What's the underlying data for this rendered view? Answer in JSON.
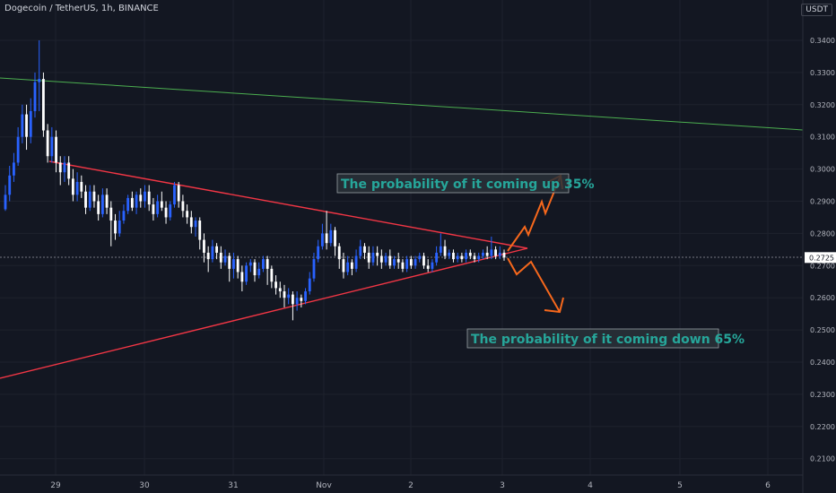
{
  "header": {
    "title": "Dogecoin / TetherUS, 1h, BINANCE",
    "currency": "USDT"
  },
  "colors": {
    "background": "#131722",
    "grid": "#1e222d",
    "axis_text": "#b2b5be",
    "up": "#2962ff",
    "down": "#ffffff",
    "triangle": "#f23645",
    "channel": "#4caf50",
    "arrow": "#f7681c",
    "annotation_text": "#26a69a",
    "price_badge": "#ffffff"
  },
  "chart_data": {
    "type": "candlestick",
    "y_ticks": [
      "0.3400",
      "0.3300",
      "0.3200",
      "0.3100",
      "0.3000",
      "0.2900",
      "0.2800",
      "0.2725",
      "0.2700",
      "0.2600",
      "0.2500",
      "0.2400",
      "0.2300",
      "0.2200",
      "0.2100"
    ],
    "x_ticks": [
      "29",
      "30",
      "31",
      "Nov",
      "2",
      "3",
      "4",
      "5",
      "6"
    ],
    "ylim": [
      0.2033,
      0.35
    ],
    "current_price": 0.2725,
    "annotations": [
      "The probability of it coming up 35%",
      "The probability of it coming down 65%"
    ],
    "candles": [
      [
        0.2875,
        0.292,
        0.287,
        0.295
      ],
      [
        0.292,
        0.298,
        0.29,
        0.301
      ],
      [
        0.298,
        0.302,
        0.296,
        0.305
      ],
      [
        0.302,
        0.31,
        0.301,
        0.313
      ],
      [
        0.31,
        0.317,
        0.308,
        0.32
      ],
      [
        0.317,
        0.31,
        0.306,
        0.32
      ],
      [
        0.31,
        0.318,
        0.308,
        0.322
      ],
      [
        0.318,
        0.327,
        0.316,
        0.33
      ],
      [
        0.327,
        0.328,
        0.318,
        0.34
      ],
      [
        0.328,
        0.312,
        0.31,
        0.33
      ],
      [
        0.312,
        0.304,
        0.302,
        0.314
      ],
      [
        0.304,
        0.31,
        0.302,
        0.313
      ],
      [
        0.31,
        0.302,
        0.299,
        0.312
      ],
      [
        0.302,
        0.299,
        0.295,
        0.304
      ],
      [
        0.299,
        0.302,
        0.296,
        0.304
      ],
      [
        0.302,
        0.297,
        0.295,
        0.304
      ],
      [
        0.297,
        0.292,
        0.29,
        0.3
      ],
      [
        0.292,
        0.296,
        0.29,
        0.299
      ],
      [
        0.296,
        0.293,
        0.291,
        0.298
      ],
      [
        0.293,
        0.288,
        0.286,
        0.295
      ],
      [
        0.288,
        0.293,
        0.287,
        0.295
      ],
      [
        0.293,
        0.29,
        0.288,
        0.295
      ],
      [
        0.29,
        0.286,
        0.284,
        0.292
      ],
      [
        0.286,
        0.292,
        0.285,
        0.294
      ],
      [
        0.292,
        0.288,
        0.286,
        0.294
      ],
      [
        0.288,
        0.284,
        0.276,
        0.29
      ],
      [
        0.284,
        0.28,
        0.278,
        0.286
      ],
      [
        0.28,
        0.284,
        0.279,
        0.287
      ],
      [
        0.284,
        0.287,
        0.283,
        0.289
      ],
      [
        0.287,
        0.291,
        0.286,
        0.292
      ],
      [
        0.291,
        0.288,
        0.287,
        0.293
      ],
      [
        0.288,
        0.292,
        0.286,
        0.293
      ],
      [
        0.292,
        0.29,
        0.288,
        0.294
      ],
      [
        0.29,
        0.293,
        0.288,
        0.295
      ],
      [
        0.293,
        0.289,
        0.287,
        0.295
      ],
      [
        0.289,
        0.286,
        0.284,
        0.291
      ],
      [
        0.286,
        0.29,
        0.285,
        0.292
      ],
      [
        0.29,
        0.288,
        0.287,
        0.293
      ],
      [
        0.288,
        0.285,
        0.283,
        0.29
      ],
      [
        0.285,
        0.289,
        0.284,
        0.29
      ],
      [
        0.289,
        0.295,
        0.288,
        0.296
      ],
      [
        0.295,
        0.29,
        0.288,
        0.296
      ],
      [
        0.29,
        0.287,
        0.285,
        0.292
      ],
      [
        0.287,
        0.285,
        0.283,
        0.289
      ],
      [
        0.285,
        0.282,
        0.28,
        0.287
      ],
      [
        0.282,
        0.284,
        0.279,
        0.285
      ],
      [
        0.284,
        0.278,
        0.275,
        0.285
      ],
      [
        0.278,
        0.274,
        0.271,
        0.28
      ],
      [
        0.274,
        0.272,
        0.268,
        0.276
      ],
      [
        0.272,
        0.276,
        0.271,
        0.278
      ],
      [
        0.276,
        0.274,
        0.272,
        0.277
      ],
      [
        0.274,
        0.271,
        0.269,
        0.276
      ],
      [
        0.271,
        0.273,
        0.27,
        0.275
      ],
      [
        0.273,
        0.269,
        0.265,
        0.274
      ],
      [
        0.269,
        0.272,
        0.266,
        0.274
      ],
      [
        0.272,
        0.268,
        0.266,
        0.273
      ],
      [
        0.268,
        0.265,
        0.262,
        0.27
      ],
      [
        0.265,
        0.27,
        0.264,
        0.271
      ],
      [
        0.27,
        0.271,
        0.268,
        0.272
      ],
      [
        0.271,
        0.267,
        0.265,
        0.272
      ],
      [
        0.267,
        0.269,
        0.266,
        0.271
      ],
      [
        0.269,
        0.272,
        0.268,
        0.273
      ],
      [
        0.272,
        0.269,
        0.264,
        0.273
      ],
      [
        0.269,
        0.265,
        0.263,
        0.27
      ],
      [
        0.265,
        0.263,
        0.261,
        0.267
      ],
      [
        0.263,
        0.262,
        0.26,
        0.265
      ],
      [
        0.262,
        0.26,
        0.257,
        0.264
      ],
      [
        0.26,
        0.261,
        0.258,
        0.263
      ],
      [
        0.261,
        0.258,
        0.253,
        0.262
      ],
      [
        0.258,
        0.26,
        0.256,
        0.262
      ],
      [
        0.26,
        0.259,
        0.257,
        0.261
      ],
      [
        0.259,
        0.262,
        0.258,
        0.263
      ],
      [
        0.262,
        0.266,
        0.261,
        0.268
      ],
      [
        0.266,
        0.272,
        0.265,
        0.274
      ],
      [
        0.272,
        0.276,
        0.271,
        0.278
      ],
      [
        0.276,
        0.28,
        0.275,
        0.283
      ],
      [
        0.28,
        0.277,
        0.275,
        0.287
      ],
      [
        0.277,
        0.281,
        0.276,
        0.283
      ],
      [
        0.281,
        0.276,
        0.273,
        0.282
      ],
      [
        0.276,
        0.272,
        0.269,
        0.277
      ],
      [
        0.272,
        0.268,
        0.266,
        0.274
      ],
      [
        0.268,
        0.271,
        0.267,
        0.273
      ],
      [
        0.271,
        0.269,
        0.267,
        0.272
      ],
      [
        0.269,
        0.273,
        0.268,
        0.275
      ],
      [
        0.273,
        0.276,
        0.272,
        0.278
      ],
      [
        0.276,
        0.274,
        0.272,
        0.277
      ],
      [
        0.274,
        0.271,
        0.269,
        0.276
      ],
      [
        0.271,
        0.274,
        0.27,
        0.276
      ],
      [
        0.274,
        0.273,
        0.27,
        0.276
      ],
      [
        0.273,
        0.271,
        0.269,
        0.275
      ],
      [
        0.271,
        0.273,
        0.27,
        0.274
      ],
      [
        0.273,
        0.27,
        0.269,
        0.275
      ],
      [
        0.27,
        0.272,
        0.269,
        0.273
      ],
      [
        0.272,
        0.271,
        0.269,
        0.274
      ],
      [
        0.271,
        0.269,
        0.268,
        0.272
      ],
      [
        0.269,
        0.272,
        0.268,
        0.273
      ],
      [
        0.272,
        0.27,
        0.269,
        0.273
      ],
      [
        0.27,
        0.272,
        0.269,
        0.273
      ],
      [
        0.272,
        0.273,
        0.271,
        0.274
      ],
      [
        0.273,
        0.27,
        0.269,
        0.274
      ],
      [
        0.27,
        0.269,
        0.268,
        0.272
      ],
      [
        0.269,
        0.271,
        0.268,
        0.272
      ],
      [
        0.271,
        0.274,
        0.27,
        0.276
      ],
      [
        0.274,
        0.276,
        0.273,
        0.28
      ],
      [
        0.276,
        0.273,
        0.272,
        0.278
      ],
      [
        0.273,
        0.274,
        0.272,
        0.275
      ],
      [
        0.274,
        0.272,
        0.271,
        0.275
      ],
      [
        0.272,
        0.273,
        0.271,
        0.274
      ],
      [
        0.273,
        0.272,
        0.271,
        0.274
      ],
      [
        0.272,
        0.274,
        0.271,
        0.275
      ],
      [
        0.274,
        0.273,
        0.272,
        0.275
      ],
      [
        0.273,
        0.272,
        0.271,
        0.274
      ],
      [
        0.272,
        0.273,
        0.271,
        0.274
      ],
      [
        0.273,
        0.274,
        0.272,
        0.275
      ],
      [
        0.274,
        0.273,
        0.272,
        0.276
      ],
      [
        0.273,
        0.275,
        0.272,
        0.279
      ],
      [
        0.275,
        0.273,
        0.272,
        0.276
      ],
      [
        0.273,
        0.274,
        0.272,
        0.276
      ],
      [
        0.274,
        0.2725,
        0.2715,
        0.275
      ]
    ]
  }
}
